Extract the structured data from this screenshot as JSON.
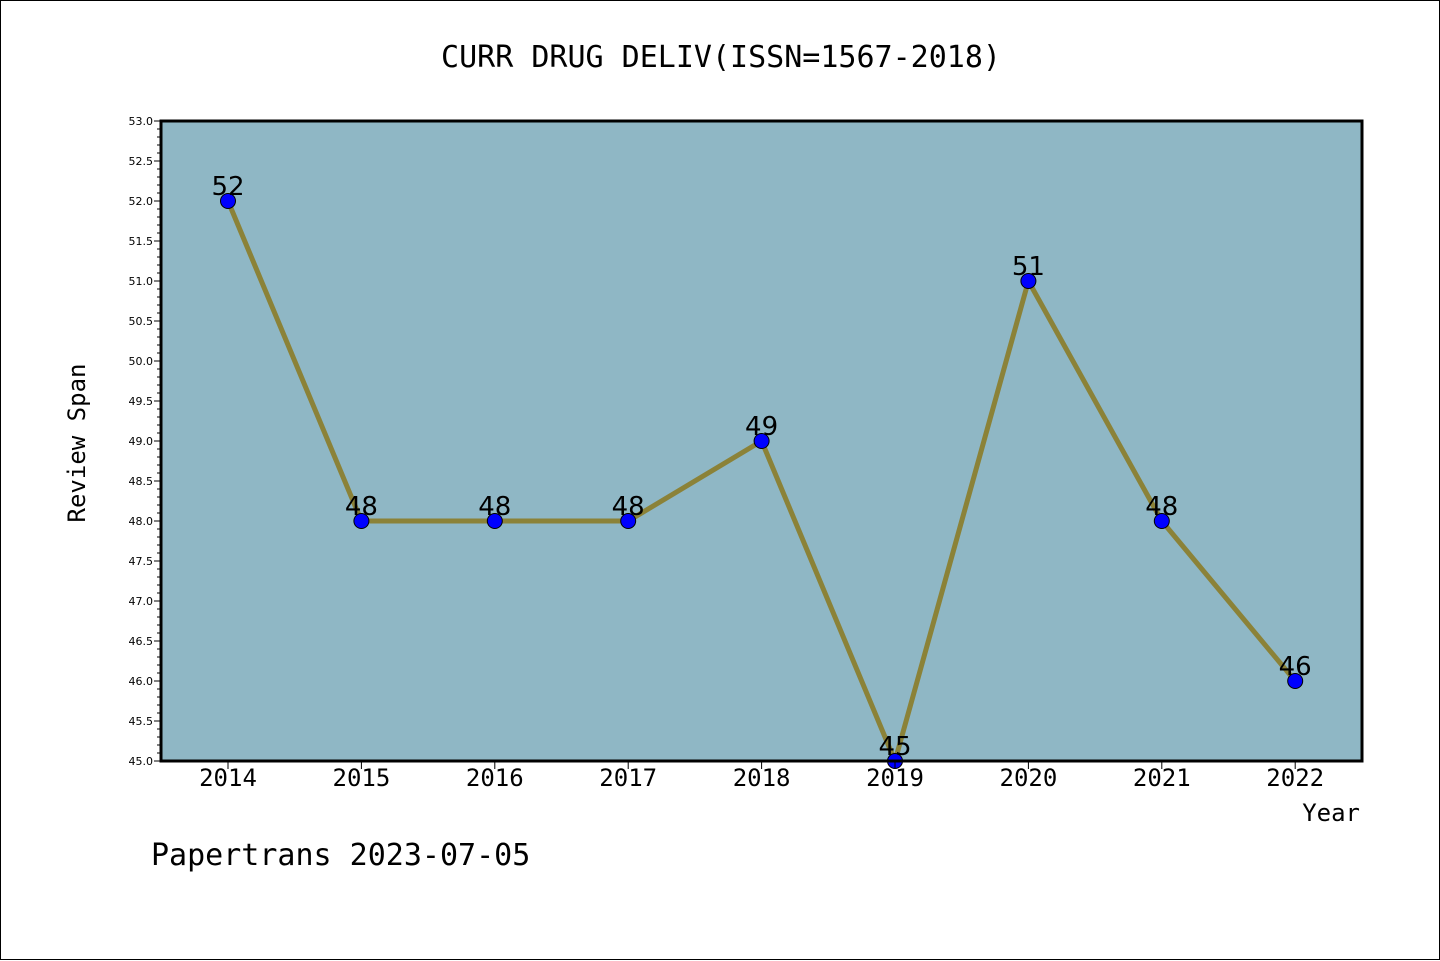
{
  "chart_data": {
    "type": "line",
    "title": "CURR DRUG DELIV(ISSN=1567-2018)",
    "xlabel": "Year",
    "ylabel": "Review Span",
    "categories": [
      "2014",
      "2015",
      "2016",
      "2017",
      "2018",
      "2019",
      "2020",
      "2021",
      "2022"
    ],
    "values": [
      52,
      48,
      48,
      48,
      49,
      45,
      51,
      48,
      46
    ],
    "data_labels": [
      "52",
      "48",
      "48",
      "48",
      "49",
      "45",
      "51",
      "48",
      "46"
    ],
    "ylim": [
      45.0,
      53.0
    ],
    "yticks": [
      "45.0",
      "45.5",
      "46.0",
      "46.5",
      "47.0",
      "47.5",
      "48.0",
      "48.5",
      "49.0",
      "49.5",
      "50.0",
      "50.5",
      "51.0",
      "51.5",
      "52.0",
      "52.5",
      "53.0"
    ],
    "grid": false,
    "plot_background": "#8fb7c5",
    "line_color": "#8b8238",
    "marker_color": "#0000ff"
  },
  "footer": {
    "watermark": "Papertrans 2023-07-05"
  }
}
